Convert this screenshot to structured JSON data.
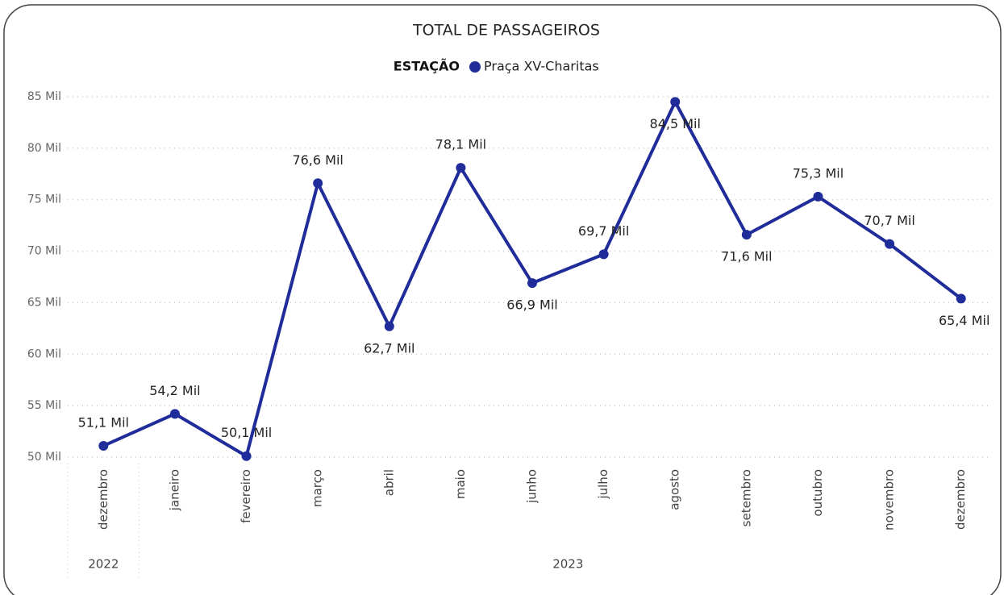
{
  "chart_data": {
    "type": "line",
    "title": "TOTAL DE PASSAGEIROS",
    "legend_title": "ESTAÇÃO",
    "groups": [
      {
        "label": "2022",
        "categories": [
          "dezembro"
        ]
      },
      {
        "label": "2023",
        "categories": [
          "janeiro",
          "fevereiro",
          "março",
          "abril",
          "maio",
          "junho",
          "julho",
          "agosto",
          "setembro",
          "outubro",
          "novembro",
          "dezembro"
        ]
      }
    ],
    "series": [
      {
        "name": "Praça XV-Charitas",
        "color": "#1f2c99",
        "values": [
          51.1,
          54.2,
          50.1,
          76.6,
          62.7,
          78.1,
          66.9,
          69.7,
          84.5,
          71.6,
          75.3,
          70.7,
          65.4
        ],
        "value_labels": [
          "51,1 Mil",
          "54,2 Mil",
          "50,1 Mil",
          "76,6 Mil",
          "62,7 Mil",
          "78,1 Mil",
          "66,9 Mil",
          "69,7 Mil",
          "84,5 Mil",
          "71,6 Mil",
          "75,3 Mil",
          "70,7 Mil",
          "65,4 Mil"
        ]
      }
    ],
    "ylim": [
      50,
      85
    ],
    "yticks": [
      {
        "value": 50,
        "label": "50 Mil"
      },
      {
        "value": 55,
        "label": "55 Mil"
      },
      {
        "value": 60,
        "label": "60 Mil"
      },
      {
        "value": 65,
        "label": "65 Mil"
      },
      {
        "value": 70,
        "label": "70 Mil"
      },
      {
        "value": 75,
        "label": "75 Mil"
      },
      {
        "value": 80,
        "label": "80 Mil"
      },
      {
        "value": 85,
        "label": "85 Mil"
      }
    ],
    "grid": true
  }
}
